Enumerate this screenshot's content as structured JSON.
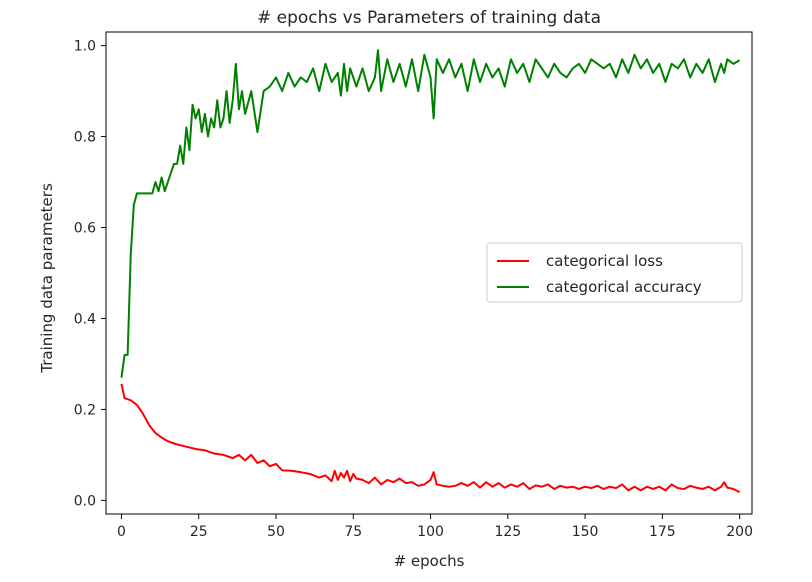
{
  "chart_data": {
    "type": "line",
    "title": "# epochs vs Parameters of training data",
    "xlabel": "# epochs",
    "ylabel": "Training data parameters",
    "xlim": [
      -5,
      204
    ],
    "ylim": [
      -0.03,
      1.03
    ],
    "xticks": [
      0,
      25,
      50,
      75,
      100,
      125,
      150,
      175,
      200
    ],
    "xtick_labels": [
      "0",
      "25",
      "50",
      "75",
      "100",
      "125",
      "150",
      "175",
      "200"
    ],
    "yticks": [
      0.0,
      0.2,
      0.4,
      0.6,
      0.8,
      1.0
    ],
    "ytick_labels": [
      "0.0",
      "0.2",
      "0.4",
      "0.6",
      "0.8",
      "1.0"
    ],
    "grid": false,
    "legend_position": "center-right",
    "series": [
      {
        "name": "categorical loss",
        "color": "#ff0000",
        "x": [
          0,
          1,
          3,
          5,
          7,
          9,
          11,
          13,
          15,
          18,
          21,
          24,
          27,
          30,
          33,
          36,
          38,
          40,
          42,
          44,
          46,
          48,
          50,
          52,
          55,
          58,
          61,
          64,
          66,
          68,
          69,
          70,
          71,
          72,
          73,
          74,
          75,
          76,
          78,
          80,
          82,
          84,
          86,
          88,
          90,
          92,
          94,
          96,
          98,
          100,
          101,
          102,
          104,
          106,
          108,
          110,
          112,
          114,
          116,
          118,
          120,
          122,
          124,
          126,
          128,
          130,
          132,
          134,
          136,
          138,
          140,
          142,
          144,
          146,
          148,
          150,
          152,
          154,
          156,
          158,
          160,
          162,
          164,
          166,
          168,
          170,
          172,
          174,
          176,
          178,
          180,
          182,
          184,
          186,
          188,
          190,
          192,
          194,
          195,
          196,
          198,
          200
        ],
        "values": [
          0.256,
          0.225,
          0.22,
          0.21,
          0.19,
          0.165,
          0.148,
          0.138,
          0.13,
          0.123,
          0.118,
          0.113,
          0.11,
          0.103,
          0.1,
          0.093,
          0.1,
          0.088,
          0.1,
          0.082,
          0.088,
          0.075,
          0.08,
          0.066,
          0.065,
          0.062,
          0.058,
          0.05,
          0.055,
          0.042,
          0.065,
          0.045,
          0.06,
          0.05,
          0.065,
          0.042,
          0.058,
          0.048,
          0.045,
          0.038,
          0.05,
          0.035,
          0.045,
          0.04,
          0.048,
          0.038,
          0.04,
          0.032,
          0.035,
          0.045,
          0.062,
          0.035,
          0.032,
          0.03,
          0.032,
          0.038,
          0.032,
          0.04,
          0.028,
          0.04,
          0.03,
          0.038,
          0.028,
          0.035,
          0.03,
          0.038,
          0.025,
          0.033,
          0.03,
          0.035,
          0.025,
          0.032,
          0.028,
          0.03,
          0.025,
          0.03,
          0.027,
          0.032,
          0.025,
          0.03,
          0.027,
          0.035,
          0.022,
          0.03,
          0.022,
          0.03,
          0.025,
          0.03,
          0.022,
          0.035,
          0.027,
          0.025,
          0.032,
          0.028,
          0.025,
          0.03,
          0.022,
          0.03,
          0.04,
          0.028,
          0.025,
          0.018
        ]
      },
      {
        "name": "categorical accuracy",
        "color": "#008000",
        "x": [
          0,
          1,
          2,
          3,
          4,
          5,
          6,
          7,
          8,
          9,
          10,
          11,
          12,
          13,
          14,
          15,
          16,
          17,
          18,
          19,
          20,
          21,
          22,
          23,
          24,
          25,
          26,
          27,
          28,
          29,
          30,
          31,
          32,
          33,
          34,
          35,
          36,
          37,
          38,
          39,
          40,
          42,
          44,
          46,
          48,
          50,
          52,
          54,
          56,
          58,
          60,
          62,
          64,
          66,
          68,
          70,
          71,
          72,
          73,
          74,
          76,
          78,
          80,
          82,
          83,
          84,
          86,
          88,
          90,
          92,
          94,
          96,
          98,
          100,
          101,
          102,
          104,
          106,
          108,
          110,
          112,
          114,
          116,
          118,
          120,
          122,
          124,
          126,
          128,
          130,
          132,
          134,
          136,
          138,
          140,
          142,
          144,
          146,
          148,
          150,
          152,
          154,
          156,
          158,
          160,
          162,
          164,
          166,
          168,
          170,
          172,
          174,
          176,
          178,
          180,
          182,
          184,
          186,
          188,
          190,
          192,
          194,
          195,
          196,
          198,
          200
        ],
        "values": [
          0.27,
          0.32,
          0.32,
          0.54,
          0.65,
          0.675,
          0.675,
          0.675,
          0.675,
          0.675,
          0.675,
          0.7,
          0.68,
          0.71,
          0.68,
          0.7,
          0.72,
          0.74,
          0.74,
          0.78,
          0.74,
          0.82,
          0.77,
          0.87,
          0.84,
          0.86,
          0.81,
          0.85,
          0.8,
          0.84,
          0.82,
          0.88,
          0.82,
          0.84,
          0.9,
          0.83,
          0.88,
          0.96,
          0.86,
          0.9,
          0.85,
          0.9,
          0.81,
          0.9,
          0.91,
          0.93,
          0.9,
          0.94,
          0.91,
          0.93,
          0.92,
          0.95,
          0.9,
          0.96,
          0.92,
          0.94,
          0.89,
          0.96,
          0.9,
          0.95,
          0.91,
          0.95,
          0.9,
          0.93,
          0.99,
          0.9,
          0.97,
          0.92,
          0.96,
          0.91,
          0.97,
          0.9,
          0.98,
          0.93,
          0.84,
          0.97,
          0.94,
          0.97,
          0.93,
          0.96,
          0.9,
          0.97,
          0.92,
          0.96,
          0.93,
          0.95,
          0.91,
          0.97,
          0.94,
          0.96,
          0.92,
          0.97,
          0.95,
          0.93,
          0.96,
          0.94,
          0.93,
          0.95,
          0.96,
          0.94,
          0.97,
          0.96,
          0.95,
          0.96,
          0.93,
          0.97,
          0.94,
          0.98,
          0.95,
          0.97,
          0.94,
          0.96,
          0.92,
          0.96,
          0.95,
          0.97,
          0.93,
          0.96,
          0.94,
          0.97,
          0.92,
          0.96,
          0.94,
          0.97,
          0.96,
          0.968
        ]
      }
    ]
  }
}
